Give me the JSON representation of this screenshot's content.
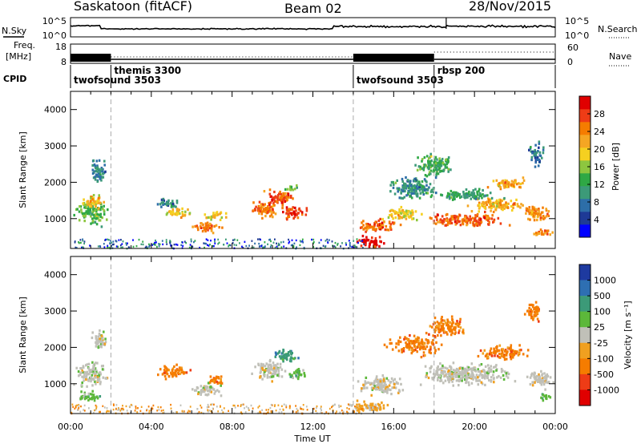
{
  "header": {
    "station": "Saskatoon (fitACF)",
    "beam": "Beam 02",
    "date": "28/Nov/2015"
  },
  "labels": {
    "nsky": "N.Sky",
    "nsearch": "N.Search",
    "freq_line1": "Freq.",
    "freq_line2": "[MHz]",
    "nave": "Nave",
    "cpid": "CPID",
    "slant_range": "Slant Range [km]",
    "time_axis": "Time UT",
    "power_label": "Power [dB]",
    "velocity_label": "Velocity [m s⁻¹]"
  },
  "noise_panel": {
    "left_ticks": [
      "10^5",
      "10^0"
    ],
    "right_ticks": [
      "10^5",
      "10^0"
    ]
  },
  "freq_panel": {
    "left_ticks": [
      "18",
      "8"
    ],
    "right_ticks": [
      "60",
      "0"
    ]
  },
  "modes": [
    {
      "name": "twofsound 3503",
      "start_hour": 0
    },
    {
      "name": "themis 3300",
      "start_hour": 2
    },
    {
      "name": "twofsound 3503",
      "start_hour": 14
    },
    {
      "name": "rbsp 200",
      "start_hour": 18
    }
  ],
  "time_ticks": [
    "00:00",
    "04:00",
    "08:00",
    "12:00",
    "16:00",
    "20:00",
    "00:00"
  ],
  "colors": {
    "power": [
      "#0000ff",
      "#1e3a96",
      "#2d6ea8",
      "#3c9a78",
      "#2fa845",
      "#8dc63f",
      "#f5d020",
      "#f5a623",
      "#f57c00",
      "#ee3c16",
      "#e00000"
    ],
    "velocity": [
      "#1e3aa0",
      "#2e6fb2",
      "#3c9a78",
      "#5cb83a",
      "#c0c0b8",
      "#f0a020",
      "#f57c00",
      "#ee3c16",
      "#e00000"
    ]
  },
  "chart_data": [
    {
      "type": "heatmap",
      "title": "Power",
      "ylabel": "Slant Range [km]",
      "xlabel": "",
      "x_range_hours": [
        0,
        24
      ],
      "ylim": [
        180,
        4500
      ],
      "y_ticks": [
        1000,
        2000,
        3000,
        4000
      ],
      "colorbar": {
        "label": "Power [dB]",
        "ticks": [
          4,
          8,
          12,
          16,
          20,
          24,
          28
        ],
        "range": [
          0,
          32
        ]
      },
      "blobs": [
        {
          "t": 1.0,
          "r": 1200,
          "dt": 1.0,
          "dr": 450,
          "v": 15
        },
        {
          "t": 1.0,
          "r": 1500,
          "dt": 0.7,
          "dr": 250,
          "v": 21
        },
        {
          "t": 1.3,
          "r": 2300,
          "dt": 0.5,
          "dr": 450,
          "v": 8
        },
        {
          "t": 4.8,
          "r": 1450,
          "dt": 0.8,
          "dr": 180,
          "v": 9
        },
        {
          "t": 5.2,
          "r": 1200,
          "dt": 0.9,
          "dr": 160,
          "v": 20
        },
        {
          "t": 6.7,
          "r": 800,
          "dt": 0.9,
          "dr": 200,
          "v": 25
        },
        {
          "t": 7.2,
          "r": 1100,
          "dt": 0.7,
          "dr": 150,
          "v": 19
        },
        {
          "t": 9.6,
          "r": 1300,
          "dt": 0.9,
          "dr": 300,
          "v": 25
        },
        {
          "t": 10.3,
          "r": 1600,
          "dt": 0.9,
          "dr": 300,
          "v": 27
        },
        {
          "t": 11.0,
          "r": 1200,
          "dt": 0.8,
          "dr": 250,
          "v": 28
        },
        {
          "t": 10.9,
          "r": 1850,
          "dt": 0.5,
          "dr": 120,
          "v": 15
        },
        {
          "t": 14.8,
          "r": 400,
          "dt": 0.9,
          "dr": 220,
          "v": 30
        },
        {
          "t": 15.2,
          "r": 850,
          "dt": 1.3,
          "dr": 220,
          "v": 26
        },
        {
          "t": 16.3,
          "r": 1150,
          "dt": 1.2,
          "dr": 250,
          "v": 19
        },
        {
          "t": 16.8,
          "r": 1900,
          "dt": 1.5,
          "dr": 400,
          "v": 10
        },
        {
          "t": 18.0,
          "r": 2500,
          "dt": 1.2,
          "dr": 400,
          "v": 13
        },
        {
          "t": 19.5,
          "r": 1000,
          "dt": 2.5,
          "dr": 250,
          "v": 26
        },
        {
          "t": 21.2,
          "r": 1400,
          "dt": 1.8,
          "dr": 250,
          "v": 21
        },
        {
          "t": 21.5,
          "r": 2000,
          "dt": 1.2,
          "dr": 200,
          "v": 22
        },
        {
          "t": 23.0,
          "r": 1200,
          "dt": 0.9,
          "dr": 300,
          "v": 23
        },
        {
          "t": 23.3,
          "r": 650,
          "dt": 0.6,
          "dr": 150,
          "v": 25
        },
        {
          "t": 23.0,
          "r": 2800,
          "dt": 0.5,
          "dr": 400,
          "v": 8
        },
        {
          "t": 19.5,
          "r": 1700,
          "dt": 2.0,
          "dr": 200,
          "v": 11
        }
      ]
    },
    {
      "type": "heatmap",
      "title": "Velocity",
      "ylabel": "Slant Range [km]",
      "xlabel": "Time UT",
      "x_range_hours": [
        0,
        24
      ],
      "ylim": [
        180,
        4500
      ],
      "y_ticks": [
        1000,
        2000,
        3000,
        4000
      ],
      "colorbar": {
        "label": "Velocity [m s⁻¹]",
        "ticks": [
          "1000",
          "500",
          "100",
          "25",
          "-25",
          "-100",
          "-500",
          "-1000"
        ]
      },
      "blobs": [
        {
          "t": 1.0,
          "r": 1300,
          "dt": 1.0,
          "dr": 450,
          "c": 4
        },
        {
          "t": 0.9,
          "r": 700,
          "dt": 0.8,
          "dr": 180,
          "c": 3
        },
        {
          "t": 1.4,
          "r": 2200,
          "dt": 0.5,
          "dr": 400,
          "c": 4
        },
        {
          "t": 5.0,
          "r": 1350,
          "dt": 1.0,
          "dr": 250,
          "c": 6
        },
        {
          "t": 6.7,
          "r": 850,
          "dt": 0.9,
          "dr": 250,
          "c": 4
        },
        {
          "t": 7.2,
          "r": 1150,
          "dt": 0.6,
          "dr": 180,
          "c": 6
        },
        {
          "t": 9.8,
          "r": 1400,
          "dt": 1.0,
          "dr": 350,
          "c": 4
        },
        {
          "t": 10.6,
          "r": 1800,
          "dt": 0.8,
          "dr": 250,
          "c": 2
        },
        {
          "t": 11.3,
          "r": 1300,
          "dt": 0.6,
          "dr": 220,
          "c": 3
        },
        {
          "t": 14.7,
          "r": 400,
          "dt": 1.2,
          "dr": 200,
          "c": 5
        },
        {
          "t": 15.4,
          "r": 1000,
          "dt": 1.4,
          "dr": 350,
          "c": 4
        },
        {
          "t": 17.0,
          "r": 2100,
          "dt": 1.6,
          "dr": 350,
          "c": 6
        },
        {
          "t": 18.5,
          "r": 2600,
          "dt": 1.3,
          "dr": 350,
          "c": 6
        },
        {
          "t": 19.5,
          "r": 1300,
          "dt": 3.0,
          "dr": 400,
          "c": 4
        },
        {
          "t": 21.5,
          "r": 1900,
          "dt": 1.6,
          "dr": 250,
          "c": 6
        },
        {
          "t": 23.2,
          "r": 1150,
          "dt": 0.9,
          "dr": 300,
          "c": 4
        },
        {
          "t": 23.5,
          "r": 650,
          "dt": 0.4,
          "dr": 150,
          "c": 3
        },
        {
          "t": 22.9,
          "r": 3000,
          "dt": 0.5,
          "dr": 350,
          "c": 6
        }
      ]
    }
  ]
}
